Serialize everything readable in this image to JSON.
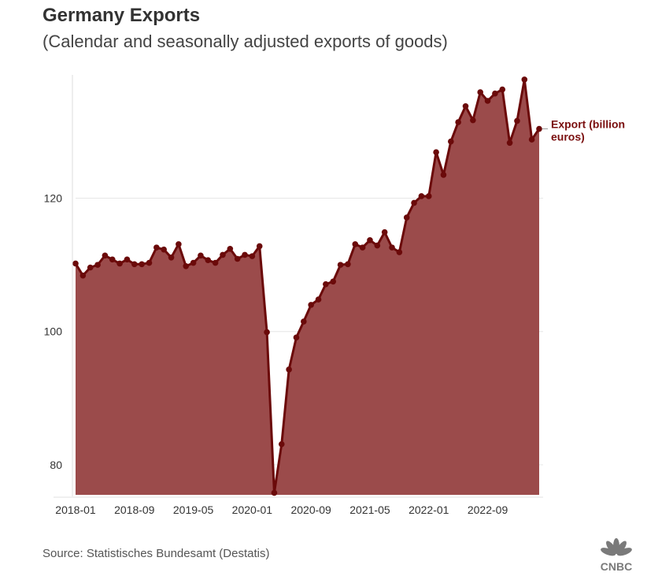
{
  "header": {
    "title": "Germany Exports",
    "subtitle": "(Calendar and seasonally adjusted exports of goods)"
  },
  "footer": {
    "source": "Source: Statistisches Bundesamt (Destatis)",
    "logo_text": "CNBC"
  },
  "colors": {
    "fill": "#9b4b4b",
    "line": "#6b0a0a",
    "legend": "#7a0f0f",
    "grid": "#e6e6e6"
  },
  "chart_data": {
    "type": "area",
    "title": "Germany Exports",
    "subtitle": "(Calendar and seasonally adjusted exports of goods)",
    "xlabel": "",
    "ylabel": "",
    "ylim": [
      75.5,
      138.5
    ],
    "y_ticks": [
      80,
      100,
      120
    ],
    "x_tick_labels": [
      "2018-01",
      "2018-09",
      "2019-05",
      "2020-01",
      "2020-09",
      "2021-05",
      "2022-01",
      "2022-09"
    ],
    "grid": "horizontal",
    "legend_placement": "right, at line end",
    "x": [
      "2018-01",
      "2018-02",
      "2018-03",
      "2018-04",
      "2018-05",
      "2018-06",
      "2018-07",
      "2018-08",
      "2018-09",
      "2018-10",
      "2018-11",
      "2018-12",
      "2019-01",
      "2019-02",
      "2019-03",
      "2019-04",
      "2019-05",
      "2019-06",
      "2019-07",
      "2019-08",
      "2019-09",
      "2019-10",
      "2019-11",
      "2019-12",
      "2020-01",
      "2020-02",
      "2020-03",
      "2020-04",
      "2020-05",
      "2020-06",
      "2020-07",
      "2020-08",
      "2020-09",
      "2020-10",
      "2020-11",
      "2020-12",
      "2021-01",
      "2021-02",
      "2021-03",
      "2021-04",
      "2021-05",
      "2021-06",
      "2021-07",
      "2021-08",
      "2021-09",
      "2021-10",
      "2021-11",
      "2021-12",
      "2022-01",
      "2022-02",
      "2022-03",
      "2022-04",
      "2022-05",
      "2022-06",
      "2022-07",
      "2022-08",
      "2022-09",
      "2022-10",
      "2022-11",
      "2022-12",
      "2023-01",
      "2023-02",
      "2023-03",
      "2023-04"
    ],
    "series": [
      {
        "name": "Export (billion euros)",
        "values": [
          110.2,
          108.4,
          109.6,
          110.0,
          111.4,
          110.8,
          110.2,
          110.8,
          110.1,
          110.1,
          110.3,
          112.6,
          112.3,
          111.1,
          113.1,
          109.8,
          110.3,
          111.4,
          110.7,
          110.3,
          111.5,
          112.4,
          110.9,
          111.5,
          111.3,
          112.8,
          99.9,
          75.8,
          83.1,
          94.3,
          99.1,
          101.5,
          104.0,
          104.8,
          107.1,
          107.5,
          110.0,
          110.1,
          113.1,
          112.6,
          113.7,
          112.9,
          114.9,
          112.6,
          111.9,
          117.1,
          119.3,
          120.3,
          120.3,
          126.9,
          123.5,
          128.5,
          131.4,
          133.8,
          131.7,
          135.9,
          134.6,
          135.7,
          136.3,
          128.3,
          131.6,
          137.8,
          128.8,
          130.4
        ]
      }
    ]
  }
}
